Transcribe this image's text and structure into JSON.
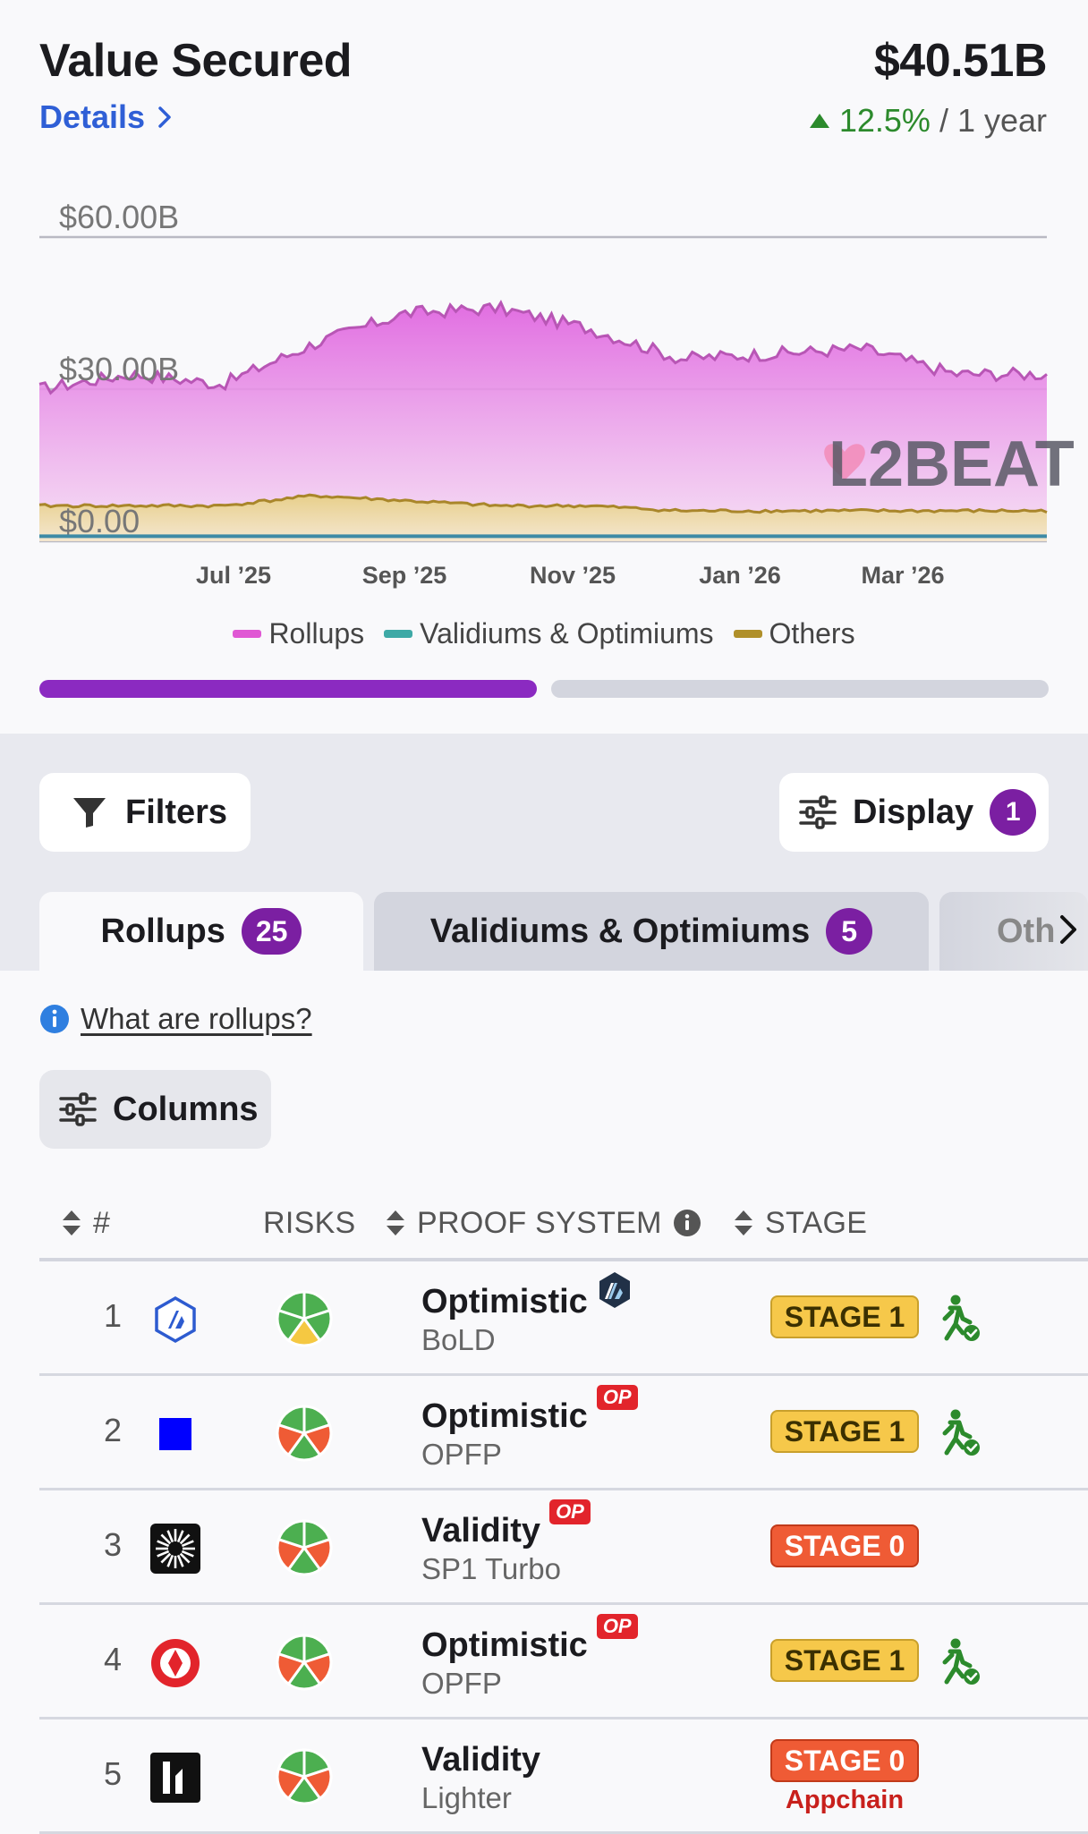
{
  "header": {
    "title": "Value Secured",
    "details_label": "Details",
    "total_value": "$40.51B",
    "change_pct": "12.5%",
    "change_period": "/ 1 year"
  },
  "chart_data": {
    "type": "area",
    "x": [
      "2025-05",
      "2025-06",
      "2025-07",
      "2025-08",
      "2025-09",
      "2025-10",
      "2025-11",
      "2025-12",
      "2026-01",
      "2026-02",
      "2026-03",
      "2026-04"
    ],
    "x_tick_labels": [
      "Jul ’25",
      "Sep ’25",
      "Nov ’25",
      "Jan ’26",
      "Mar ’26"
    ],
    "y_tick_labels": [
      "$60.00B",
      "$30.00B",
      "$0.00"
    ],
    "ylim": [
      0,
      60
    ],
    "grid": true,
    "legend_position": "bottom",
    "series": [
      {
        "name": "Rollups",
        "color": "#d94fd0",
        "values": [
          30,
          33,
          31,
          39,
          45,
          46,
          42,
          36,
          37,
          38,
          33,
          33
        ]
      },
      {
        "name": "Validiums & Optimiums",
        "color": "#3ea9a6",
        "values": [
          1,
          1,
          1,
          1,
          1,
          1,
          1,
          1,
          1,
          1,
          1,
          1
        ]
      },
      {
        "name": "Others",
        "color": "#b0902a",
        "values": [
          7,
          7,
          7,
          9,
          8,
          7,
          7,
          6,
          6,
          6,
          6,
          6
        ]
      }
    ]
  },
  "toolbar": {
    "filters_label": "Filters",
    "display_label": "Display",
    "display_count": "1"
  },
  "tabs": [
    {
      "label": "Rollups",
      "count": "25"
    },
    {
      "label": "Validiums & Optimiums",
      "count": "5"
    },
    {
      "label": "Oth"
    }
  ],
  "info_link": "What are rollups?",
  "columns_label": "Columns",
  "table": {
    "headers": {
      "num": "#",
      "risks": "RISKS",
      "proof": "PROOF SYSTEM",
      "stage": "STAGE"
    },
    "rows": [
      {
        "num": "1",
        "proof_type": "Optimistic",
        "proof_sub": "BoLD",
        "badge": "arbitrum",
        "stage": "STAGE 1",
        "stage_level": 1,
        "extra": ""
      },
      {
        "num": "2",
        "proof_type": "Optimistic",
        "proof_sub": "OPFP",
        "badge": "OP",
        "stage": "STAGE 1",
        "stage_level": 1,
        "extra": ""
      },
      {
        "num": "3",
        "proof_type": "Validity",
        "proof_sub": "SP1 Turbo",
        "badge": "OP",
        "stage": "STAGE 0",
        "stage_level": 0,
        "extra": ""
      },
      {
        "num": "4",
        "proof_type": "Optimistic",
        "proof_sub": "OPFP",
        "badge": "OP",
        "stage": "STAGE 1",
        "stage_level": 1,
        "extra": ""
      },
      {
        "num": "5",
        "proof_type": "Validity",
        "proof_sub": "Lighter",
        "badge": "",
        "stage": "STAGE 0",
        "stage_level": 0,
        "extra": "Appchain"
      }
    ]
  },
  "watermark": "L2BEAT"
}
